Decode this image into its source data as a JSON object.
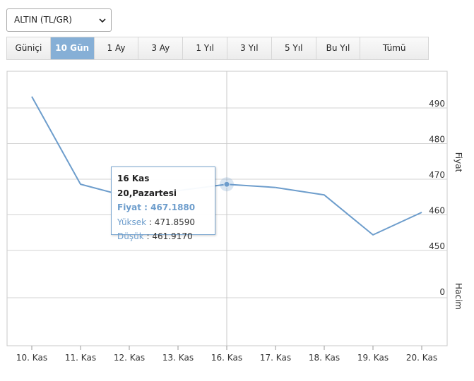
{
  "selector": {
    "value": "ALTIN (TL/GR)"
  },
  "tabs": [
    {
      "label": "Güniçi",
      "width": 62
    },
    {
      "label": "10 Gün",
      "width": 62,
      "active": true
    },
    {
      "label": "1 Ay",
      "width": 63
    },
    {
      "label": "3 Ay",
      "width": 63
    },
    {
      "label": "1 Yıl",
      "width": 63
    },
    {
      "label": "3 Yıl",
      "width": 63
    },
    {
      "label": "5 Yıl",
      "width": 63
    },
    {
      "label": "Bu Yıl",
      "width": 63
    },
    {
      "label": "Tümü",
      "width": 96
    }
  ],
  "tooltip": {
    "title": "16 Kas 20,Pazartesi",
    "price_label": "Fiyat",
    "price_value": "467.1880",
    "high_label": "Yüksek",
    "high_value": "471.8590",
    "low_label": "Düşük",
    "low_value": "461.9170",
    "separator": " : "
  },
  "chart_data": {
    "type": "line",
    "categories": [
      "10. Kas",
      "11. Kas",
      "12. Kas",
      "13. Kas",
      "16. Kas",
      "17. Kas",
      "18. Kas",
      "19. Kas",
      "20. Kas"
    ],
    "series": [
      {
        "values": [
          491.8,
          467.2,
          463.6,
          465.4,
          467.19,
          466.3,
          464.2,
          453.0,
          459.3
        ]
      }
    ],
    "price_axis": {
      "label": "Fiyat",
      "ticks": [
        450,
        460,
        470,
        480,
        490
      ],
      "ylim": [
        450,
        490
      ]
    },
    "volume_axis": {
      "label": "Hacim",
      "ticks": [
        0
      ]
    },
    "crosshair_index": 4,
    "colors": {
      "line": "#6d9dcc",
      "grid": "#d3d3d3",
      "crosshair": "#c8c8c8"
    }
  }
}
